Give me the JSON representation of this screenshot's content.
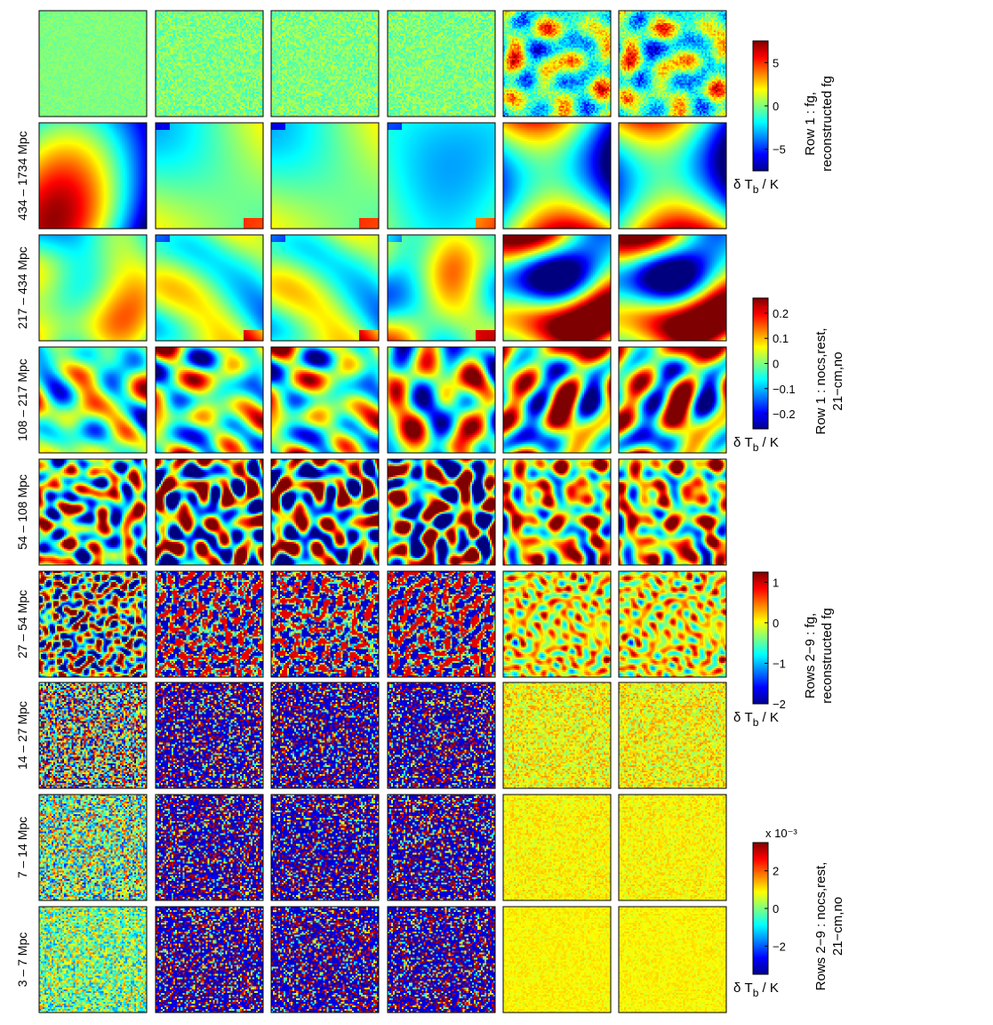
{
  "figure": {
    "row_labels": [
      "",
      "434 – 1734 Mpc",
      "217 – 434 Mpc",
      "108 – 217 Mpc",
      "54 – 108 Mpc",
      "27 – 54 Mpc",
      "14 – 27 Mpc",
      "7 – 14 Mpc",
      "3 – 7 Mpc"
    ],
    "columns": 6,
    "colormap": "jet",
    "colorbars": [
      {
        "title_line1": "Row 1 : fg,",
        "title_line2": "reconstructed fg",
        "unit": "δ T_b / K",
        "ticks": [
          "5",
          "0",
          "−5"
        ],
        "tick_values": [
          5,
          0,
          -5
        ],
        "range": [
          -7.5,
          7.5
        ],
        "multiplier": ""
      },
      {
        "title_line1": "Row 1 : nocs,rest,",
        "title_line2": "21−cm,no",
        "unit": "δ T_b / K",
        "ticks": [
          "0.2",
          "0.1",
          "0",
          "−0.1",
          "−0.2"
        ],
        "tick_values": [
          0.2,
          0.1,
          0,
          -0.1,
          -0.2
        ],
        "range": [
          -0.26,
          0.26
        ],
        "multiplier": ""
      },
      {
        "title_line1": "Rows 2−9 : fg,",
        "title_line2": "reconstructed fg",
        "unit": "δ T_b / K",
        "ticks": [
          "1",
          "0",
          "−1",
          "−2"
        ],
        "tick_values": [
          1,
          0,
          -1,
          -2
        ],
        "range": [
          -2,
          1.25
        ],
        "multiplier": ""
      },
      {
        "title_line1": "Rows 2−9 : nocs,rest,",
        "title_line2": "21−cm,no",
        "unit": "δ T_b / K",
        "ticks": [
          "2",
          "0",
          "−2"
        ],
        "tick_values": [
          2,
          0,
          -2
        ],
        "range": [
          -3.5,
          3.5
        ],
        "multiplier": "x 10⁻³"
      }
    ]
  }
}
